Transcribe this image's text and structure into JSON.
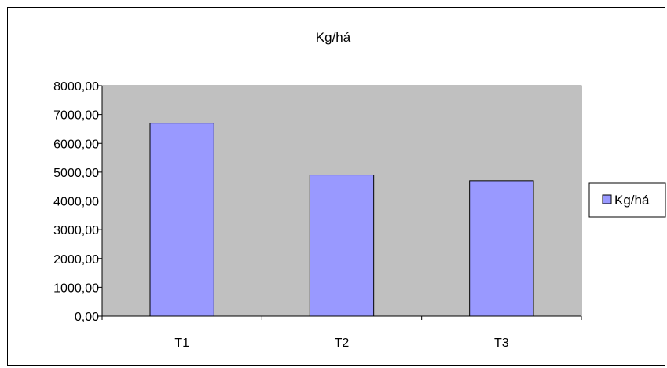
{
  "chart_data": {
    "type": "bar",
    "title": "Kg/há",
    "categories": [
      "T1",
      "T2",
      "T3"
    ],
    "series": [
      {
        "name": "Kg/há",
        "values": [
          6700,
          4900,
          4700
        ],
        "color": "#9999ff"
      }
    ],
    "ylim": [
      0,
      8000
    ],
    "yticks": [
      0,
      1000,
      2000,
      3000,
      4000,
      5000,
      6000,
      7000,
      8000
    ],
    "ytick_labels": [
      "0,00",
      "1000,00",
      "2000,00",
      "3000,00",
      "4000,00",
      "5000,00",
      "6000,00",
      "7000,00",
      "8000,00"
    ],
    "plot_background": "#c0c0c0",
    "grid": false,
    "legend_position": "right"
  }
}
